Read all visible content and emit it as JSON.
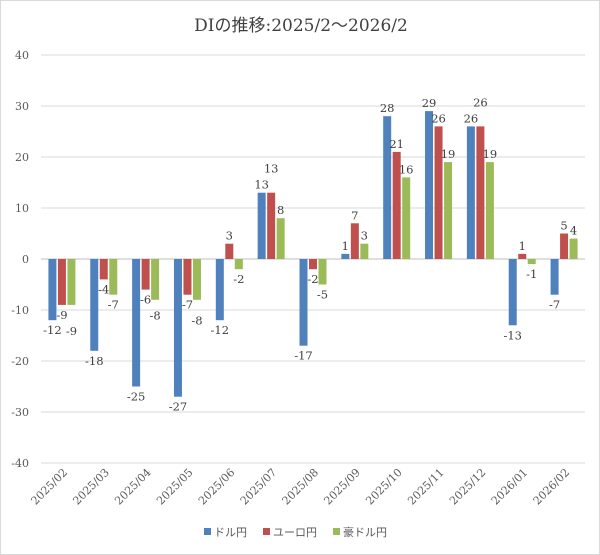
{
  "chart_data": {
    "type": "bar",
    "title": "DIの推移:2025/2～2026/2",
    "xlabel": "",
    "ylabel": "",
    "ylim": [
      -40,
      40
    ],
    "yticks": [
      40,
      30,
      20,
      10,
      0,
      -10,
      -20,
      -30,
      -40
    ],
    "grid": true,
    "legend_position": "bottom",
    "categories": [
      "2025/02",
      "2025/03",
      "2025/04",
      "2025/05",
      "2025/06",
      "2025/07",
      "2025/08",
      "2025/09",
      "2025/10",
      "2025/11",
      "2025/12",
      "2026/01",
      "2026/02"
    ],
    "series": [
      {
        "name": "ドル円",
        "color": "#4f81bd",
        "values": [
          -12,
          -18,
          -25,
          -27,
          -12,
          13,
          -17,
          1,
          28,
          29,
          26,
          -13,
          -7
        ]
      },
      {
        "name": "ユーロ円",
        "color": "#c0504d",
        "values": [
          -9,
          -4,
          -6,
          -7,
          3,
          13,
          -2,
          7,
          21,
          26,
          26,
          1,
          5
        ]
      },
      {
        "name": "豪ドル円",
        "color": "#9bbb59",
        "values": [
          -9,
          -7,
          -8,
          -8,
          -2,
          8,
          -5,
          3,
          16,
          19,
          19,
          -1,
          4
        ]
      }
    ]
  }
}
